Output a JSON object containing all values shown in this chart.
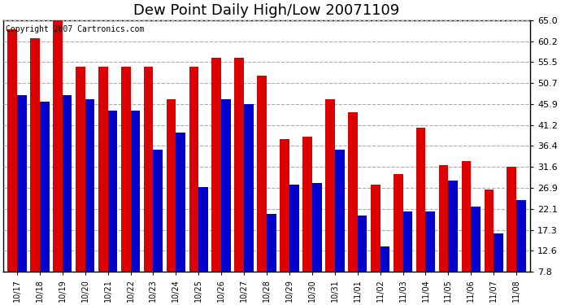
{
  "title": "Dew Point Daily High/Low 20071109",
  "copyright": "Copyright 2007 Cartronics.com",
  "dates": [
    "10/17",
    "10/18",
    "10/19",
    "10/20",
    "10/21",
    "10/22",
    "10/23",
    "10/24",
    "10/25",
    "10/26",
    "10/27",
    "10/28",
    "10/29",
    "10/30",
    "10/31",
    "11/01",
    "11/02",
    "11/03",
    "11/04",
    "11/05",
    "11/06",
    "11/07",
    "11/08"
  ],
  "highs": [
    63.0,
    61.0,
    65.0,
    54.5,
    54.5,
    54.5,
    54.5,
    47.0,
    54.5,
    56.5,
    56.5,
    52.5,
    38.0,
    38.5,
    47.0,
    44.0,
    27.5,
    30.0,
    40.5,
    32.0,
    33.0,
    26.5,
    31.6
  ],
  "lows": [
    48.0,
    46.5,
    48.0,
    47.0,
    44.5,
    44.5,
    35.5,
    39.5,
    27.0,
    47.0,
    46.0,
    21.0,
    27.5,
    28.0,
    35.5,
    20.5,
    13.5,
    21.5,
    21.5,
    28.5,
    22.5,
    16.5,
    24.0
  ],
  "high_color": "#dd0000",
  "low_color": "#0000cc",
  "bg_color": "#ffffff",
  "ymin": 7.8,
  "ymax": 65.0,
  "yticks": [
    7.8,
    12.6,
    17.3,
    22.1,
    26.9,
    31.6,
    36.4,
    41.2,
    45.9,
    50.7,
    55.5,
    60.2,
    65.0
  ],
  "grid_color": "#aaaaaa",
  "title_fontsize": 13,
  "copyright_fontsize": 7,
  "bar_width": 0.42
}
